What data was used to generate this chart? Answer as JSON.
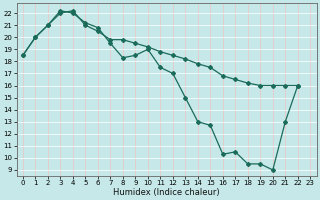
{
  "xlabel": "Humidex (Indice chaleur)",
  "xlim": [
    -0.5,
    23.5
  ],
  "ylim": [
    8.5,
    22.8
  ],
  "yticks": [
    9,
    10,
    11,
    12,
    13,
    14,
    15,
    16,
    17,
    18,
    19,
    20,
    21,
    22
  ],
  "xticks": [
    0,
    1,
    2,
    3,
    4,
    5,
    6,
    7,
    8,
    9,
    10,
    11,
    12,
    13,
    14,
    15,
    16,
    17,
    18,
    19,
    20,
    21,
    22,
    23
  ],
  "bg_color": "#c6e8e8",
  "grid_color_major": "#ffffff",
  "grid_color_minor": "#f0c0c0",
  "line_color": "#1a6b5a",
  "line1_x": [
    0,
    1,
    2,
    3,
    4,
    5,
    6,
    7,
    8,
    9,
    10,
    11,
    12,
    13,
    14,
    15,
    16,
    17,
    18,
    19,
    20,
    21,
    22
  ],
  "line1_y": [
    18.5,
    20.0,
    21.0,
    22.2,
    22.0,
    21.2,
    20.8,
    19.5,
    18.3,
    18.5,
    19.0,
    17.5,
    17.0,
    15.0,
    13.0,
    12.7,
    10.3,
    10.5,
    9.5,
    9.5,
    9.0,
    13.0,
    16.0
  ],
  "line2_x": [
    0,
    1,
    2,
    3,
    4,
    5,
    6,
    7,
    8,
    9,
    10,
    11,
    12,
    13,
    14,
    15,
    16,
    17,
    18,
    19,
    20,
    21,
    22
  ],
  "line2_y": [
    18.5,
    20.0,
    21.0,
    22.0,
    22.2,
    21.0,
    20.5,
    19.8,
    19.8,
    19.5,
    19.2,
    18.8,
    18.5,
    18.2,
    17.8,
    17.5,
    16.8,
    16.5,
    16.2,
    16.0,
    16.0,
    16.0,
    16.0
  ],
  "xlabel_fontsize": 6,
  "tick_fontsize": 5
}
